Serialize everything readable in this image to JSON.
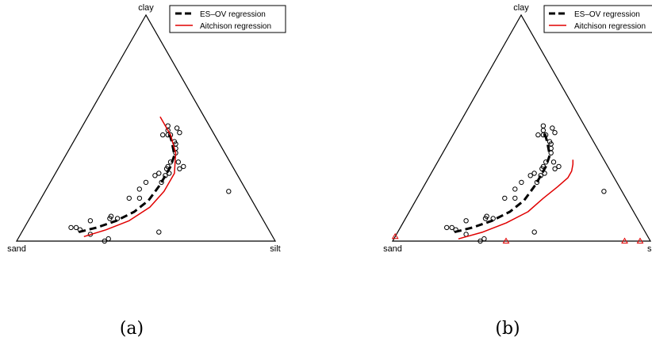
{
  "charts": [
    {
      "caption": "(a)",
      "vertices": {
        "top": "clay",
        "left": "sand",
        "right": "silt"
      },
      "legend": {
        "position": "top-right",
        "entries": [
          {
            "label": "ES–OV regression",
            "color": "#000000",
            "style": "dashed"
          },
          {
            "label": "Aitchison regression",
            "color": "#e00000",
            "style": "solid"
          }
        ]
      }
    },
    {
      "caption": "(b)",
      "vertices": {
        "top": "clay",
        "left": "sand",
        "right": "silt"
      },
      "legend": {
        "position": "top-right",
        "entries": [
          {
            "label": "ES–OV regression",
            "color": "#000000",
            "style": "dashed"
          },
          {
            "label": "Aitchison regression",
            "color": "#e00000",
            "style": "solid"
          }
        ]
      }
    }
  ],
  "chart_data": [
    {
      "type": "scatter",
      "subtype": "ternary",
      "components": [
        "sand",
        "silt",
        "clay"
      ],
      "series": [
        {
          "name": "",
          "marker": "circle-open",
          "color": "#000000",
          "points": [
            {
              "sand": 0.76,
              "silt": 0.18,
              "clay": 0.06
            },
            {
              "sand": 0.74,
              "silt": 0.2,
              "clay": 0.06
            },
            {
              "sand": 0.73,
              "silt": 0.22,
              "clay": 0.05
            },
            {
              "sand": 0.7,
              "silt": 0.27,
              "clay": 0.03
            },
            {
              "sand": 0.66,
              "silt": 0.34,
              "clay": 0.0
            },
            {
              "sand": 0.64,
              "silt": 0.35,
              "clay": 0.01
            },
            {
              "sand": 0.67,
              "silt": 0.24,
              "clay": 0.09
            },
            {
              "sand": 0.59,
              "silt": 0.31,
              "clay": 0.1
            },
            {
              "sand": 0.58,
              "silt": 0.31,
              "clay": 0.11
            },
            {
              "sand": 0.56,
              "silt": 0.34,
              "clay": 0.1
            },
            {
              "sand": 0.43,
              "silt": 0.53,
              "clay": 0.04
            },
            {
              "sand": 0.47,
              "silt": 0.34,
              "clay": 0.19
            },
            {
              "sand": 0.43,
              "silt": 0.38,
              "clay": 0.19
            },
            {
              "sand": 0.41,
              "silt": 0.36,
              "clay": 0.23
            },
            {
              "sand": 0.37,
              "silt": 0.37,
              "clay": 0.26
            },
            {
              "sand": 0.32,
              "silt": 0.39,
              "clay": 0.29
            },
            {
              "sand": 0.3,
              "silt": 0.4,
              "clay": 0.3
            },
            {
              "sand": 0.31,
              "silt": 0.43,
              "clay": 0.26
            },
            {
              "sand": 0.28,
              "silt": 0.43,
              "clay": 0.29
            },
            {
              "sand": 0.26,
              "silt": 0.44,
              "clay": 0.3
            },
            {
              "sand": 0.26,
              "silt": 0.42,
              "clay": 0.32
            },
            {
              "sand": 0.25,
              "silt": 0.42,
              "clay": 0.33
            },
            {
              "sand": 0.21,
              "silt": 0.47,
              "clay": 0.32
            },
            {
              "sand": 0.23,
              "silt": 0.42,
              "clay": 0.35
            },
            {
              "sand": 0.2,
              "silt": 0.45,
              "clay": 0.35
            },
            {
              "sand": 0.19,
              "silt": 0.48,
              "clay": 0.33
            },
            {
              "sand": 0.19,
              "silt": 0.42,
              "clay": 0.39
            },
            {
              "sand": 0.18,
              "silt": 0.41,
              "clay": 0.41
            },
            {
              "sand": 0.17,
              "silt": 0.4,
              "clay": 0.43
            },
            {
              "sand": 0.2,
              "silt": 0.33,
              "clay": 0.47
            },
            {
              "sand": 0.18,
              "silt": 0.35,
              "clay": 0.47
            },
            {
              "sand": 0.17,
              "silt": 0.36,
              "clay": 0.47
            },
            {
              "sand": 0.17,
              "silt": 0.34,
              "clay": 0.49
            },
            {
              "sand": 0.16,
              "silt": 0.33,
              "clay": 0.51
            },
            {
              "sand": 0.13,
              "silt": 0.37,
              "clay": 0.5
            },
            {
              "sand": 0.13,
              "silt": 0.39,
              "clay": 0.48
            },
            {
              "sand": 0.17,
              "silt": 0.39,
              "clay": 0.44
            },
            {
              "sand": 0.07,
              "silt": 0.71,
              "clay": 0.22
            }
          ]
        },
        {
          "name": "ES–OV regression",
          "style": "dashed",
          "color": "#000000",
          "points": [
            {
              "sand": 0.74,
              "silt": 0.22,
              "clay": 0.04
            },
            {
              "sand": 0.66,
              "silt": 0.28,
              "clay": 0.06
            },
            {
              "sand": 0.57,
              "silt": 0.34,
              "clay": 0.09
            },
            {
              "sand": 0.48,
              "silt": 0.39,
              "clay": 0.13
            },
            {
              "sand": 0.4,
              "silt": 0.42,
              "clay": 0.18
            },
            {
              "sand": 0.32,
              "silt": 0.43,
              "clay": 0.25
            },
            {
              "sand": 0.24,
              "silt": 0.43,
              "clay": 0.33
            },
            {
              "sand": 0.2,
              "silt": 0.42,
              "clay": 0.38
            },
            {
              "sand": 0.18,
              "silt": 0.38,
              "clay": 0.44
            },
            {
              "sand": 0.17,
              "silt": 0.35,
              "clay": 0.48
            }
          ]
        },
        {
          "name": "Aitchison regression",
          "style": "solid",
          "color": "#e00000",
          "points": [
            {
              "sand": 0.73,
              "silt": 0.25,
              "clay": 0.02
            },
            {
              "sand": 0.63,
              "silt": 0.32,
              "clay": 0.05
            },
            {
              "sand": 0.52,
              "silt": 0.39,
              "clay": 0.09
            },
            {
              "sand": 0.41,
              "silt": 0.44,
              "clay": 0.15
            },
            {
              "sand": 0.32,
              "silt": 0.46,
              "clay": 0.22
            },
            {
              "sand": 0.24,
              "silt": 0.46,
              "clay": 0.3
            },
            {
              "sand": 0.19,
              "silt": 0.42,
              "clay": 0.39
            },
            {
              "sand": 0.17,
              "silt": 0.36,
              "clay": 0.47
            },
            {
              "sand": 0.17,
              "silt": 0.31,
              "clay": 0.52
            },
            {
              "sand": 0.17,
              "silt": 0.28,
              "clay": 0.55
            }
          ]
        }
      ]
    },
    {
      "type": "scatter",
      "subtype": "ternary",
      "components": [
        "sand",
        "silt",
        "clay"
      ],
      "series": [
        {
          "name": "",
          "marker": "circle-open",
          "color": "#000000",
          "points": [
            {
              "sand": 0.76,
              "silt": 0.18,
              "clay": 0.06
            },
            {
              "sand": 0.74,
              "silt": 0.2,
              "clay": 0.06
            },
            {
              "sand": 0.73,
              "silt": 0.22,
              "clay": 0.05
            },
            {
              "sand": 0.7,
              "silt": 0.27,
              "clay": 0.03
            },
            {
              "sand": 0.66,
              "silt": 0.34,
              "clay": 0.0
            },
            {
              "sand": 0.64,
              "silt": 0.35,
              "clay": 0.01
            },
            {
              "sand": 0.67,
              "silt": 0.24,
              "clay": 0.09
            },
            {
              "sand": 0.59,
              "silt": 0.31,
              "clay": 0.1
            },
            {
              "sand": 0.58,
              "silt": 0.31,
              "clay": 0.11
            },
            {
              "sand": 0.56,
              "silt": 0.34,
              "clay": 0.1
            },
            {
              "sand": 0.43,
              "silt": 0.53,
              "clay": 0.04
            },
            {
              "sand": 0.47,
              "silt": 0.34,
              "clay": 0.19
            },
            {
              "sand": 0.43,
              "silt": 0.38,
              "clay": 0.19
            },
            {
              "sand": 0.41,
              "silt": 0.36,
              "clay": 0.23
            },
            {
              "sand": 0.37,
              "silt": 0.37,
              "clay": 0.26
            },
            {
              "sand": 0.32,
              "silt": 0.39,
              "clay": 0.29
            },
            {
              "sand": 0.3,
              "silt": 0.4,
              "clay": 0.3
            },
            {
              "sand": 0.31,
              "silt": 0.43,
              "clay": 0.26
            },
            {
              "sand": 0.28,
              "silt": 0.43,
              "clay": 0.29
            },
            {
              "sand": 0.26,
              "silt": 0.44,
              "clay": 0.3
            },
            {
              "sand": 0.26,
              "silt": 0.42,
              "clay": 0.32
            },
            {
              "sand": 0.25,
              "silt": 0.42,
              "clay": 0.33
            },
            {
              "sand": 0.21,
              "silt": 0.47,
              "clay": 0.32
            },
            {
              "sand": 0.23,
              "silt": 0.42,
              "clay": 0.35
            },
            {
              "sand": 0.2,
              "silt": 0.45,
              "clay": 0.35
            },
            {
              "sand": 0.19,
              "silt": 0.48,
              "clay": 0.33
            },
            {
              "sand": 0.19,
              "silt": 0.42,
              "clay": 0.39
            },
            {
              "sand": 0.18,
              "silt": 0.41,
              "clay": 0.41
            },
            {
              "sand": 0.17,
              "silt": 0.4,
              "clay": 0.43
            },
            {
              "sand": 0.2,
              "silt": 0.33,
              "clay": 0.47
            },
            {
              "sand": 0.18,
              "silt": 0.35,
              "clay": 0.47
            },
            {
              "sand": 0.17,
              "silt": 0.36,
              "clay": 0.47
            },
            {
              "sand": 0.17,
              "silt": 0.34,
              "clay": 0.49
            },
            {
              "sand": 0.16,
              "silt": 0.33,
              "clay": 0.51
            },
            {
              "sand": 0.13,
              "silt": 0.37,
              "clay": 0.5
            },
            {
              "sand": 0.13,
              "silt": 0.39,
              "clay": 0.48
            },
            {
              "sand": 0.17,
              "silt": 0.39,
              "clay": 0.44
            },
            {
              "sand": 0.07,
              "silt": 0.71,
              "clay": 0.22
            }
          ]
        },
        {
          "name": "",
          "marker": "triangle-open",
          "color": "#e00000",
          "points": [
            {
              "sand": 0.98,
              "silt": 0.0,
              "clay": 0.02
            },
            {
              "sand": 0.56,
              "silt": 0.44,
              "clay": 0.0
            },
            {
              "sand": 0.1,
              "silt": 0.9,
              "clay": 0.0
            },
            {
              "sand": 0.04,
              "silt": 0.96,
              "clay": 0.0
            }
          ]
        },
        {
          "name": "ES–OV regression",
          "style": "dashed",
          "color": "#000000",
          "points": [
            {
              "sand": 0.74,
              "silt": 0.22,
              "clay": 0.04
            },
            {
              "sand": 0.66,
              "silt": 0.28,
              "clay": 0.06
            },
            {
              "sand": 0.57,
              "silt": 0.34,
              "clay": 0.09
            },
            {
              "sand": 0.48,
              "silt": 0.39,
              "clay": 0.13
            },
            {
              "sand": 0.4,
              "silt": 0.42,
              "clay": 0.18
            },
            {
              "sand": 0.32,
              "silt": 0.43,
              "clay": 0.25
            },
            {
              "sand": 0.24,
              "silt": 0.43,
              "clay": 0.33
            },
            {
              "sand": 0.2,
              "silt": 0.42,
              "clay": 0.38
            },
            {
              "sand": 0.18,
              "silt": 0.38,
              "clay": 0.44
            },
            {
              "sand": 0.17,
              "silt": 0.35,
              "clay": 0.48
            }
          ]
        },
        {
          "name": "Aitchison regression",
          "style": "solid",
          "color": "#e00000",
          "points": [
            {
              "sand": 0.74,
              "silt": 0.25,
              "clay": 0.01
            },
            {
              "sand": 0.63,
              "silt": 0.33,
              "clay": 0.04
            },
            {
              "sand": 0.52,
              "silt": 0.4,
              "clay": 0.08
            },
            {
              "sand": 0.41,
              "silt": 0.46,
              "clay": 0.13
            },
            {
              "sand": 0.32,
              "silt": 0.49,
              "clay": 0.19
            },
            {
              "sand": 0.24,
              "silt": 0.52,
              "clay": 0.24
            },
            {
              "sand": 0.18,
              "silt": 0.54,
              "clay": 0.28
            },
            {
              "sand": 0.15,
              "silt": 0.54,
              "clay": 0.31
            },
            {
              "sand": 0.13,
              "silt": 0.53,
              "clay": 0.34
            },
            {
              "sand": 0.12,
              "silt": 0.52,
              "clay": 0.36
            }
          ]
        }
      ]
    }
  ]
}
